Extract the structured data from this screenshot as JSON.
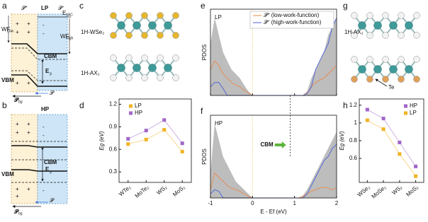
{
  "panel_labels": {
    "a": "a",
    "b": "b",
    "c": "c",
    "d": "d",
    "e": "e",
    "f": "f",
    "g": "g",
    "h": "h"
  },
  "diagram_a": {
    "p_plus": "𝒫⁺",
    "title": "LP",
    "p_minus": "𝒫⁻",
    "e_vac": "E",
    "e_vac_sub": "VAC",
    "wf_low": "WF",
    "wf_low_sub": "Low",
    "wf_high": "WF",
    "wf_high_sub": "High",
    "cbm": "CBM",
    "eg": "E",
    "eg_sub": "g",
    "vbm": "VBM",
    "plus": "+",
    "minus": "-",
    "p": "𝒫",
    "p_bg": "𝒫",
    "p_bg_sub": "bg"
  },
  "diagram_b": {
    "title": "HP",
    "cbm": "CBM",
    "eg": "E",
    "eg_sub": "g",
    "vbm": "VBM",
    "p": "𝒫",
    "p_bg": "𝒫",
    "p_bg_sub": "bg"
  },
  "structure_c": {
    "top_label": "1H-WSe₂",
    "bottom_label": "1H-AX₂"
  },
  "structure_g": {
    "top_label": "1H-AX₂",
    "atom_label": "Te"
  },
  "chart_data": [
    {
      "type": "line",
      "ylabel": "Eg (eV)",
      "categories": [
        "WTe₂",
        "MoTe₂",
        "WS₂",
        "MoS₂"
      ],
      "ylim": [
        0.16,
        1.27
      ],
      "yticks": [
        0.3,
        0.6,
        0.9,
        1.2
      ],
      "legend": "upper left",
      "series": [
        {
          "name": "LP",
          "color": "#f0b323",
          "values": [
            0.67,
            0.73,
            0.86,
            0.57
          ]
        },
        {
          "name": "HP",
          "color": "#a066c8",
          "values": [
            0.74,
            0.85,
            0.99,
            0.68
          ]
        }
      ]
    },
    {
      "type": "area",
      "label": "LP",
      "ylabel": "PDOS",
      "xlim": [
        -1,
        2
      ],
      "xticks": [
        -1,
        0,
        1,
        2
      ],
      "tick_labels": false,
      "ylim": [
        0,
        10
      ],
      "legend": "upper right",
      "x": [
        -1,
        -0.9,
        -0.8,
        -0.7,
        -0.6,
        -0.5,
        -0.4,
        -0.3,
        -0.2,
        -0.1,
        0,
        0.1,
        0.2,
        0.3,
        0.4,
        0.5,
        0.6,
        0.7,
        0.8,
        0.9,
        1,
        1.1,
        1.2,
        1.3,
        1.4,
        1.5,
        1.6,
        1.7,
        1.8,
        1.9,
        2
      ],
      "total": {
        "color": "#bdbdbd",
        "values": [
          6,
          9,
          7,
          5,
          4,
          3,
          2.5,
          2,
          1.2,
          0.5,
          0,
          0,
          0,
          0,
          0,
          0,
          0,
          0,
          0,
          0,
          0,
          0,
          0,
          0.5,
          2,
          3,
          4,
          5,
          7,
          8,
          9
        ]
      },
      "series": [
        {
          "name": "𝒫⁺ (low-work-function)",
          "color": "#e8894a",
          "values": [
            3,
            4,
            3.5,
            2.5,
            2,
            1.5,
            1.2,
            1,
            0.6,
            0.3,
            0,
            0,
            0,
            0,
            0,
            0,
            0,
            0,
            0,
            0,
            0,
            0,
            0,
            0.3,
            1,
            1.5,
            1.8,
            2,
            2.5,
            3,
            3.5
          ]
        },
        {
          "name": "𝒫⁻ (high-work-function)",
          "color": "#4a5fd8",
          "values": [
            1,
            1.5,
            1.5,
            0.8,
            0,
            0,
            0,
            0,
            0,
            0,
            0,
            0,
            0,
            0,
            0,
            0,
            0,
            0,
            0,
            0,
            0,
            0,
            0,
            0.2,
            1,
            3,
            4,
            5,
            6,
            8,
            9
          ]
        }
      ]
    },
    {
      "type": "area",
      "label": "HP",
      "ylabel": "PDOS",
      "xlabel": "E - Ef (eV)",
      "xlim": [
        -1,
        2
      ],
      "xticks": [
        -1,
        0,
        1,
        2
      ],
      "tick_labels": true,
      "ylim": [
        0,
        10
      ],
      "annotation": {
        "text": "CBM",
        "x": 0.9
      },
      "x": [
        -1,
        -0.9,
        -0.8,
        -0.7,
        -0.6,
        -0.5,
        -0.4,
        -0.3,
        -0.2,
        -0.1,
        0,
        0.1,
        0.2,
        0.3,
        0.4,
        0.5,
        0.6,
        0.7,
        0.8,
        0.9,
        1,
        1.1,
        1.2,
        1.3,
        1.4,
        1.5,
        1.6,
        1.7,
        1.8,
        1.9,
        2
      ],
      "total": {
        "color": "#bdbdbd",
        "values": [
          3,
          9,
          7,
          5,
          4,
          3,
          2,
          1.5,
          1,
          0.5,
          0,
          0,
          0,
          0,
          0,
          0,
          0,
          0,
          0,
          0,
          0,
          0,
          0.3,
          1,
          2,
          3,
          4,
          5,
          6,
          7,
          8
        ]
      },
      "series": [
        {
          "color": "#e8894a",
          "values": [
            1,
            3,
            2.5,
            2,
            1.5,
            1.2,
            1,
            0.8,
            0.5,
            0.2,
            0,
            0,
            0,
            0,
            0,
            0,
            0,
            0,
            0,
            0,
            0,
            0,
            0.2,
            0.5,
            0.8,
            1,
            1.2,
            1.3,
            1.2,
            1,
            1.2
          ]
        },
        {
          "color": "#4a5fd8",
          "values": [
            0.5,
            1,
            0.8,
            0,
            0,
            0,
            0,
            0,
            0,
            0,
            0,
            0,
            0,
            0,
            0,
            0,
            0,
            0,
            0,
            0,
            0,
            0,
            0,
            0.5,
            1.5,
            2.5,
            3.5,
            4.5,
            5,
            6,
            6.5
          ]
        }
      ]
    },
    {
      "type": "line",
      "ylabel": "Eg (eV)",
      "categories": [
        "WSe₂",
        "MoSe₂",
        "WS₂",
        "MoS₂"
      ],
      "ylim": [
        0.33,
        1.27
      ],
      "yticks": [
        0.6,
        0.8,
        1.0,
        1.2
      ],
      "legend": "upper right",
      "series": [
        {
          "name": "HP",
          "color": "#a066c8",
          "values": [
            1.15,
            1.05,
            0.78,
            0.51
          ]
        },
        {
          "name": "LP",
          "color": "#f0b323",
          "values": [
            1.03,
            0.93,
            0.65,
            0.4
          ]
        }
      ]
    }
  ]
}
